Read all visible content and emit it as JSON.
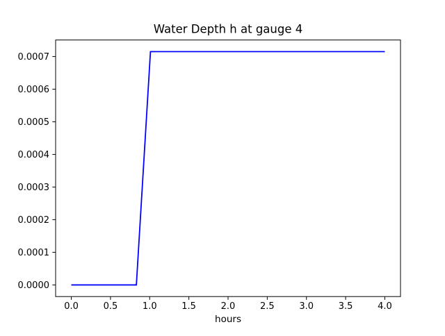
{
  "figure": {
    "background": "#ffffff"
  },
  "chart_data": {
    "type": "line",
    "title": "Water Depth h at gauge 4",
    "xlabel": "hours",
    "ylabel": "",
    "x": [
      0.0,
      0.83,
      1.01,
      4.0
    ],
    "y": [
      0.0,
      0.0,
      0.000715,
      0.000715
    ],
    "series_name": "water depth",
    "line_color": "#0000ff",
    "xlim": [
      -0.2,
      4.2
    ],
    "ylim": [
      -3.57e-05,
      0.0007507
    ],
    "xticks": [
      0.0,
      0.5,
      1.0,
      1.5,
      2.0,
      2.5,
      3.0,
      3.5,
      4.0
    ],
    "xtick_labels": [
      "0.0",
      "0.5",
      "1.0",
      "1.5",
      "2.0",
      "2.5",
      "3.0",
      "3.5",
      "4.0"
    ],
    "yticks": [
      0.0,
      0.0001,
      0.0002,
      0.0003,
      0.0004,
      0.0005,
      0.0006,
      0.0007
    ],
    "ytick_labels": [
      "0.0000",
      "0.0001",
      "0.0002",
      "0.0003",
      "0.0004",
      "0.0005",
      "0.0006",
      "0.0007"
    ],
    "grid": false,
    "legend": null
  }
}
